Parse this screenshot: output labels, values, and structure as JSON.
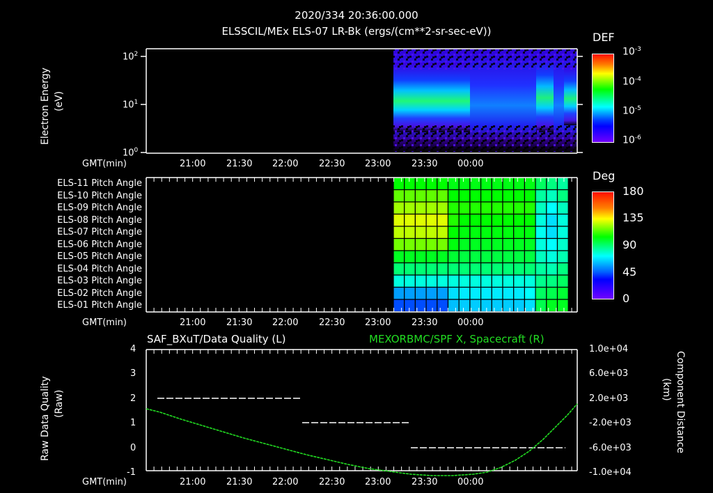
{
  "header": {
    "timestamp": "2020/334 20:36:00.000",
    "title": "ELSSCIL/MEx ELS-07 LR-Bk  (ergs/(cm**2-sr-sec-eV))"
  },
  "colors": {
    "background": "#000000",
    "axes": "#ffffff",
    "spacecraft_line": "#22dd22"
  },
  "time_axis": {
    "label": "GMT(min)",
    "ticks": [
      "21:00",
      "21:30",
      "22:00",
      "22:30",
      "23:00",
      "23:30",
      "00:00"
    ]
  },
  "panel1": {
    "ylabel_line1": "Electron Energy",
    "ylabel_line2": "(eV)",
    "yticks": [
      {
        "base": "10",
        "exp": "2"
      },
      {
        "base": "10",
        "exp": "1"
      },
      {
        "base": "10",
        "exp": "0"
      }
    ],
    "colorbar": {
      "title": "DEF",
      "ticks": [
        {
          "base": "10",
          "exp": "-3"
        },
        {
          "base": "10",
          "exp": "-4"
        },
        {
          "base": "10",
          "exp": "-5"
        },
        {
          "base": "10",
          "exp": "-6"
        }
      ]
    }
  },
  "panel2": {
    "row_labels": [
      "ELS-11 Pitch Angle",
      "ELS-10 Pitch Angle",
      "ELS-09 Pitch Angle",
      "ELS-08 Pitch Angle",
      "ELS-07 Pitch Angle",
      "ELS-06 Pitch Angle",
      "ELS-05 Pitch Angle",
      "ELS-04 Pitch Angle",
      "ELS-03 Pitch Angle",
      "ELS-02 Pitch Angle",
      "ELS-01 Pitch Angle"
    ],
    "colorbar": {
      "title": "Deg",
      "ticks": [
        "180",
        "135",
        "90",
        "45",
        "0"
      ]
    }
  },
  "panel3": {
    "left_title": "SAF_BXuT/Data Quality (L)",
    "right_title": "MEXORBMC/SPF X, Spacecraft (R)",
    "ylabel_left_line1": "Raw Data Quality",
    "ylabel_left_line2": "(Raw)",
    "yticks_left": [
      "4",
      "3",
      "2",
      "1",
      "0",
      "-1"
    ],
    "ylabel_right_line1": "Component Distance",
    "ylabel_right_line2": "(km)",
    "yticks_right": [
      "1.0e+04",
      "6.0e+03",
      "2.0e+03",
      "-2.0e+03",
      "-6.0e+03",
      "-1.0e+04"
    ]
  },
  "chart_data": [
    {
      "type": "heatmap",
      "title": "ELSSCIL/MEx ELS-07 LR-Bk (ergs/(cm**2-sr-sec-eV))",
      "xlabel": "GMT(min)",
      "ylabel": "Electron Energy (eV)",
      "yscale": "log",
      "ylim": [
        1,
        150
      ],
      "xlim": [
        "20:36",
        "01:15"
      ],
      "x_ticks": [
        "21:00",
        "21:30",
        "22:00",
        "22:30",
        "23:00",
        "23:30",
        "00:00"
      ],
      "colorbar": {
        "label": "DEF",
        "scale": "log",
        "range": [
          1e-06,
          0.001
        ]
      },
      "data_start": "22:46",
      "notes": "No data before ~22:46. Enhanced flux (~1e-4) at ~8-15 eV from 22:46 to ~23:25, weaker broad flux afterwards, second enhancement near 00:00-00:10 and ~01:10 at ~10-30 eV."
    },
    {
      "type": "heatmap",
      "title": "Pitch Angle",
      "xlabel": "GMT(min)",
      "categories": [
        "ELS-11",
        "ELS-10",
        "ELS-09",
        "ELS-08",
        "ELS-07",
        "ELS-06",
        "ELS-05",
        "ELS-04",
        "ELS-03",
        "ELS-02",
        "ELS-01"
      ],
      "colorbar": {
        "label": "Deg",
        "range": [
          0,
          180
        ],
        "ticks": [
          0,
          45,
          90,
          135,
          180
        ]
      },
      "x_columns": 16,
      "values_deg": [
        [
          100,
          100,
          100,
          100,
          100,
          97,
          97,
          97,
          97,
          97,
          97,
          97,
          97,
          85,
          80,
          75
        ],
        [
          115,
          115,
          115,
          115,
          115,
          100,
          100,
          100,
          100,
          100,
          100,
          100,
          100,
          75,
          70,
          80
        ],
        [
          125,
          125,
          125,
          125,
          125,
          105,
          105,
          105,
          105,
          105,
          105,
          105,
          105,
          70,
          60,
          70
        ],
        [
          135,
          135,
          135,
          135,
          135,
          105,
          100,
          100,
          100,
          100,
          100,
          100,
          100,
          65,
          55,
          65
        ],
        [
          130,
          130,
          130,
          130,
          130,
          100,
          98,
          98,
          98,
          98,
          98,
          98,
          98,
          62,
          55,
          65
        ],
        [
          118,
          118,
          118,
          118,
          118,
          98,
          95,
          95,
          95,
          95,
          95,
          95,
          95,
          65,
          60,
          68
        ],
        [
          95,
          95,
          95,
          95,
          95,
          92,
          90,
          90,
          90,
          90,
          90,
          90,
          90,
          70,
          65,
          72
        ],
        [
          82,
          82,
          82,
          82,
          82,
          82,
          82,
          82,
          82,
          82,
          82,
          82,
          82,
          75,
          72,
          80
        ],
        [
          65,
          65,
          65,
          65,
          65,
          65,
          65,
          65,
          65,
          65,
          65,
          65,
          65,
          78,
          80,
          85
        ],
        [
          45,
          45,
          45,
          45,
          45,
          55,
          57,
          57,
          57,
          57,
          57,
          57,
          60,
          85,
          88,
          92
        ],
        [
          32,
          32,
          32,
          32,
          32,
          50,
          52,
          52,
          52,
          52,
          52,
          52,
          55,
          88,
          95,
          95
        ]
      ],
      "data_start": "22:46"
    },
    {
      "type": "line",
      "title_left": "SAF_BXuT/Data Quality (L)",
      "title_right": "MEXORBMC/SPF X, Spacecraft (R)",
      "xlabel": "GMT(min)",
      "ylabel_left": "Raw Data Quality (Raw)",
      "ylabel_right": "Component Distance (km)",
      "ylim_left": [
        -1,
        4
      ],
      "ylim_right": [
        -10000,
        10000
      ],
      "series": [
        {
          "name": "Data Quality",
          "axis": "left",
          "x": [
            "20:43",
            "21:59",
            "21:59",
            "22:49",
            "22:49",
            "01:10"
          ],
          "values": [
            2,
            2,
            1,
            1,
            0,
            0
          ]
        },
        {
          "name": "SPF X (km)",
          "axis": "right",
          "x": [
            "20:36",
            "21:00",
            "21:30",
            "22:00",
            "22:30",
            "23:00",
            "23:15",
            "23:30",
            "23:45",
            "00:00",
            "00:15",
            "00:30",
            "00:45",
            "01:00",
            "01:15"
          ],
          "values": [
            -1500,
            -2500,
            -3800,
            -5000,
            -6200,
            -7300,
            -7600,
            -7700,
            -7500,
            -6900,
            -5600,
            -3800,
            -1500,
            1000,
            3000
          ]
        }
      ]
    }
  ]
}
